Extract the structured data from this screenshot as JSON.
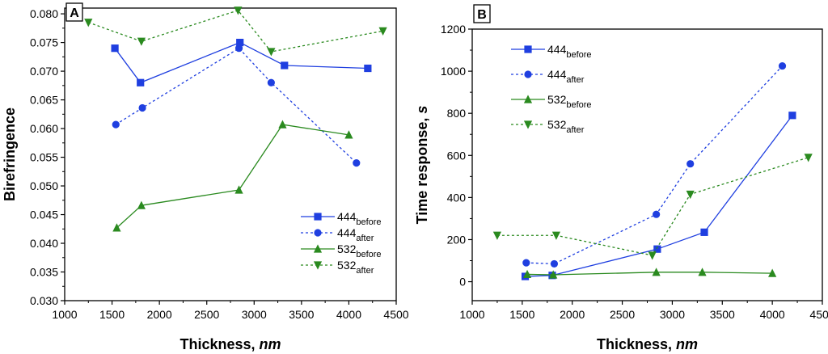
{
  "colors": {
    "blue": "#1f3fe0",
    "green": "#2a8a1f",
    "axis": "#000000"
  },
  "chart_data": [
    {
      "panel_label": "A",
      "type": "line",
      "xlabel": "Thickness, ",
      "xlabel_italic": "nm",
      "ylabel": "Birefringence",
      "ylabel_italic": "",
      "xlim": [
        1000,
        4500
      ],
      "ylim": [
        0.03,
        0.081
      ],
      "xticks": [
        1000,
        1500,
        2000,
        2500,
        3000,
        3500,
        4000,
        4500
      ],
      "yticks": [
        0.03,
        0.035,
        0.04,
        0.045,
        0.05,
        0.055,
        0.06,
        0.065,
        0.07,
        0.075,
        0.08
      ],
      "ytick_labels": [
        "0.030",
        "0.035",
        "0.040",
        "0.045",
        "0.050",
        "0.055",
        "0.060",
        "0.065",
        "0.070",
        "0.075",
        "0.080"
      ],
      "legend_position": "bottom-right",
      "series": [
        {
          "base": "444",
          "sub": "before",
          "color": "blue",
          "dash": false,
          "marker": "square",
          "x": [
            1530,
            1800,
            2850,
            3320,
            4200
          ],
          "y": [
            0.074,
            0.068,
            0.075,
            0.071,
            0.0705
          ]
        },
        {
          "base": "444",
          "sub": "after",
          "color": "blue",
          "dash": true,
          "marker": "circle",
          "x": [
            1540,
            1820,
            2840,
            3180,
            4080
          ],
          "y": [
            0.0607,
            0.0636,
            0.074,
            0.068,
            0.054
          ]
        },
        {
          "base": "532",
          "sub": "before",
          "color": "green",
          "dash": false,
          "marker": "triangle-up",
          "x": [
            1550,
            1810,
            2840,
            3300,
            4000
          ],
          "y": [
            0.0427,
            0.0466,
            0.0493,
            0.0607,
            0.0589
          ]
        },
        {
          "base": "532",
          "sub": "after",
          "color": "green",
          "dash": true,
          "marker": "triangle-down",
          "x": [
            1250,
            1810,
            2830,
            3180,
            4360
          ],
          "y": [
            0.0785,
            0.0752,
            0.0806,
            0.0734,
            0.077
          ]
        }
      ]
    },
    {
      "panel_label": "B",
      "type": "line",
      "xlabel": "Thickness, ",
      "xlabel_italic": "nm",
      "ylabel": "Time response, ",
      "ylabel_italic": "s",
      "xlim": [
        1000,
        4500
      ],
      "ylim": [
        -90,
        1200
      ],
      "xticks": [
        1000,
        1500,
        2000,
        2500,
        3000,
        3500,
        4000,
        4500
      ],
      "yticks": [
        0,
        200,
        400,
        600,
        800,
        1000,
        1200
      ],
      "ytick_labels": [
        "0",
        "200",
        "400",
        "600",
        "800",
        "1000",
        "1200"
      ],
      "legend_position": "top-left",
      "series": [
        {
          "base": "444",
          "sub": "before",
          "color": "blue",
          "dash": false,
          "marker": "square",
          "x": [
            1530,
            1800,
            2850,
            3320,
            4200
          ],
          "y": [
            25,
            30,
            155,
            235,
            790
          ]
        },
        {
          "base": "444",
          "sub": "after",
          "color": "blue",
          "dash": true,
          "marker": "circle",
          "x": [
            1540,
            1820,
            2840,
            3180,
            4100
          ],
          "y": [
            90,
            85,
            320,
            560,
            1025
          ]
        },
        {
          "base": "532",
          "sub": "before",
          "color": "green",
          "dash": false,
          "marker": "triangle-up",
          "x": [
            1550,
            1810,
            2840,
            3300,
            4000
          ],
          "y": [
            35,
            33,
            45,
            45,
            40
          ]
        },
        {
          "base": "532",
          "sub": "after",
          "color": "green",
          "dash": true,
          "marker": "triangle-down",
          "x": [
            1250,
            1840,
            2800,
            3180,
            4360
          ],
          "y": [
            220,
            220,
            125,
            415,
            590
          ]
        }
      ]
    }
  ]
}
